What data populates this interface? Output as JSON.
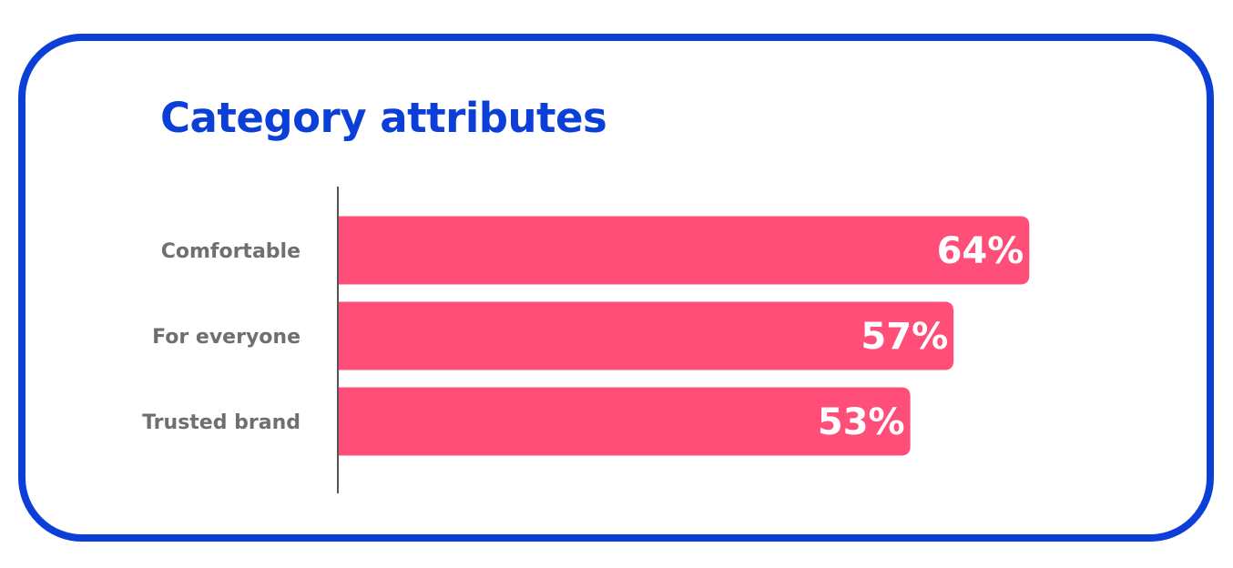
{
  "colors": {
    "frame": "#0b3fd8",
    "title": "#0b3fd8",
    "bar": "#ff4f79",
    "axis": "#555555",
    "category_label": "#6f6f6f",
    "value_label": "#ffffff"
  },
  "chart_data": {
    "type": "bar",
    "orientation": "horizontal",
    "title": "Category attributes",
    "categories": [
      "Comfortable",
      "For everyone",
      "Trusted brand"
    ],
    "values": [
      64,
      57,
      53
    ],
    "value_labels": [
      "64%",
      "57%",
      "53%"
    ],
    "unit": "%",
    "xlim": [
      0,
      100
    ],
    "grid": false,
    "legend": "none"
  }
}
